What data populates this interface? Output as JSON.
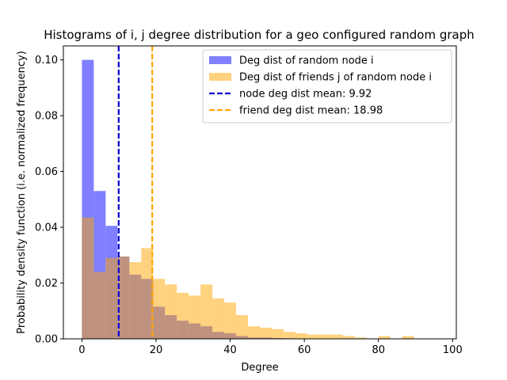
{
  "chart_data": {
    "type": "bar",
    "title": "Histograms of i, j degree distribution for a geo configured random graph",
    "xlabel": "Degree",
    "ylabel": "Probability density function (i.e. normalized frequency)",
    "xlim": [
      -5,
      101
    ],
    "ylim": [
      0,
      0.105
    ],
    "xticks": [
      0,
      20,
      40,
      60,
      80,
      100
    ],
    "yticks": [
      0.0,
      0.02,
      0.04,
      0.06,
      0.08,
      0.1
    ],
    "ytick_labels": [
      "0.00",
      "0.02",
      "0.04",
      "0.06",
      "0.08",
      "0.10"
    ],
    "grid": false,
    "legend_position": "top-right",
    "series": [
      {
        "name": "Deg dist of random node i",
        "color": "#7f7fff",
        "bin_edges": [
          0,
          3.2,
          6.4,
          9.6,
          12.8,
          16.0,
          19.2,
          22.4,
          25.6,
          28.8,
          32.0,
          35.2,
          38.4,
          41.6,
          44.8,
          48.0,
          51.2,
          54.4,
          57.6
        ],
        "values": [
          0.1,
          0.053,
          0.0405,
          0.0295,
          0.023,
          0.0215,
          0.0115,
          0.0085,
          0.0065,
          0.0055,
          0.0045,
          0.0025,
          0.002,
          0.001,
          0.0005,
          0.0005,
          0.0003,
          0.0002
        ]
      },
      {
        "name": "Deg dist of friends j of random node i",
        "color": "#ffa500",
        "bin_edges": [
          0,
          3.2,
          6.4,
          9.6,
          12.8,
          16.0,
          19.2,
          22.4,
          25.6,
          28.8,
          32.0,
          35.2,
          38.4,
          41.6,
          44.8,
          48.0,
          51.2,
          54.4,
          57.6,
          60.8,
          64.0,
          67.2,
          70.4,
          73.6,
          76.8,
          80.0,
          83.2,
          86.4,
          89.6
        ],
        "values": [
          0.0435,
          0.024,
          0.029,
          0.0295,
          0.0275,
          0.0325,
          0.0215,
          0.0195,
          0.0165,
          0.0155,
          0.0195,
          0.0145,
          0.013,
          0.0085,
          0.0045,
          0.004,
          0.0035,
          0.0025,
          0.002,
          0.0015,
          0.0015,
          0.0015,
          0.001,
          0.0005,
          0.0,
          0.001,
          0.0,
          0.001
        ]
      }
    ],
    "reference_lines": [
      {
        "name": "node deg dist mean: 9.92",
        "x": 9.92,
        "color": "#0000cc",
        "style": "dashed"
      },
      {
        "name": "friend deg dist mean: 18.98",
        "x": 18.98,
        "color": "#ffa500",
        "style": "dashed"
      }
    ]
  }
}
